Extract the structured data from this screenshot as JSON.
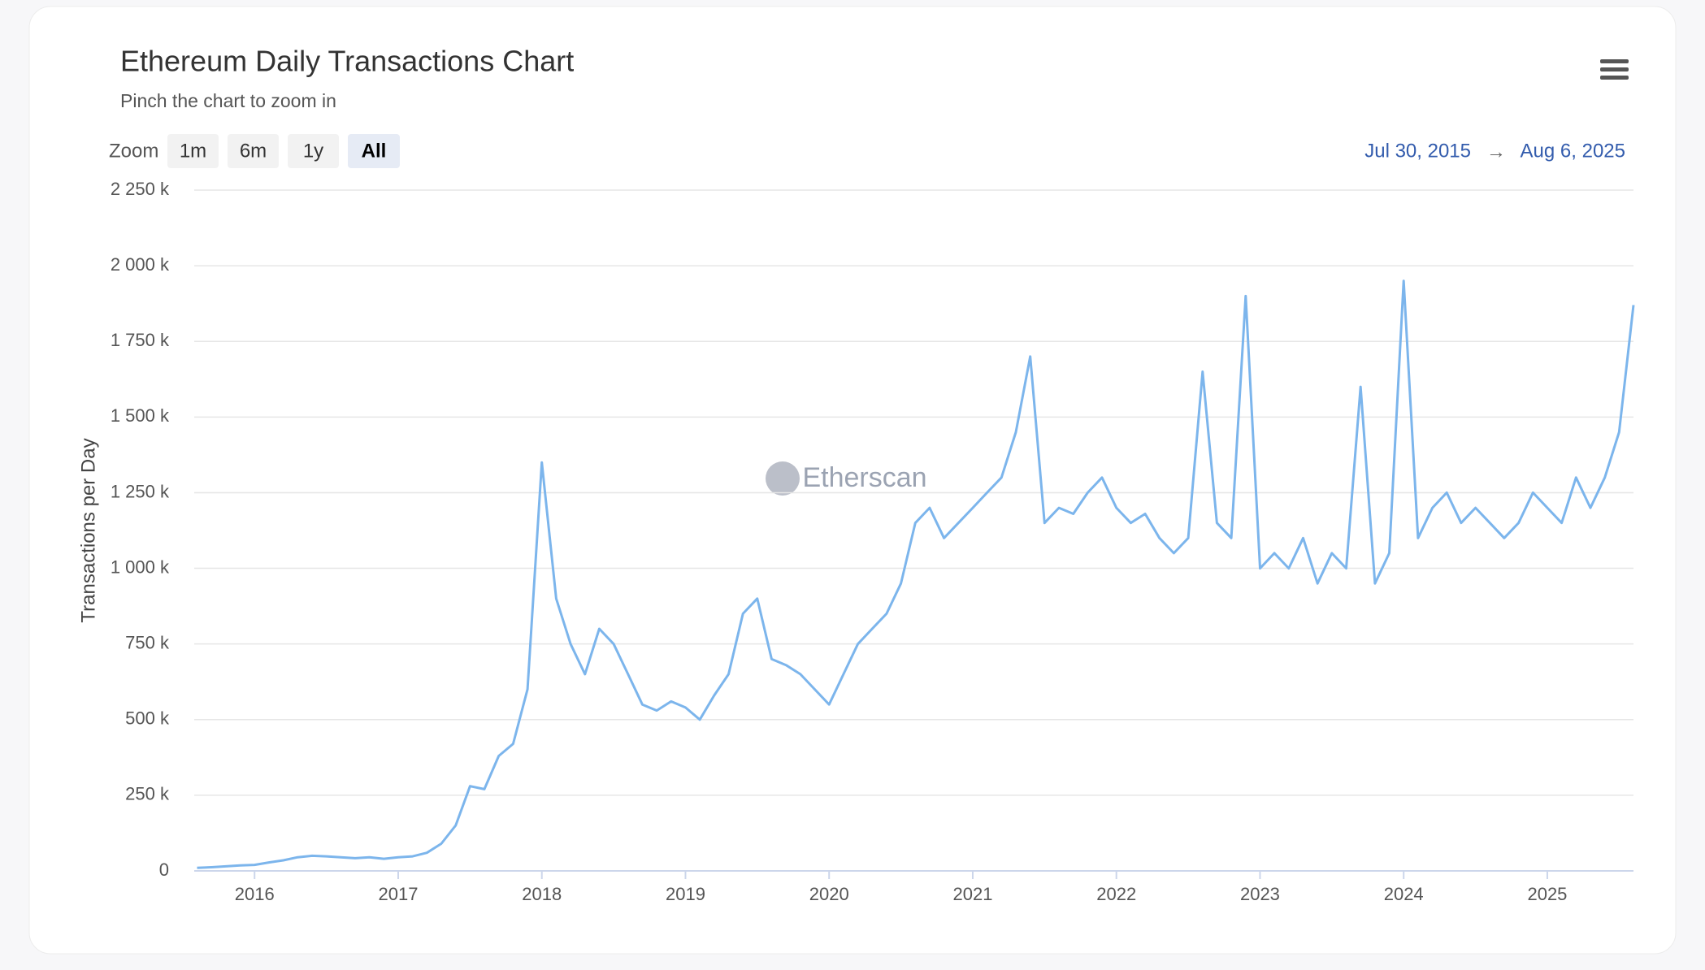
{
  "chart_data": {
    "type": "line",
    "title": "Ethereum Daily Transactions Chart",
    "subtitle": "Pinch the chart to zoom in",
    "zoom_label": "Zoom",
    "zoom_buttons": [
      "1m",
      "6m",
      "1y",
      "All"
    ],
    "zoom_active": 3,
    "range_start": "Jul 30, 2015",
    "range_arrow": "→",
    "range_end": "Aug 6, 2025",
    "watermark": "Etherscan",
    "y_label": "Transactions per Day",
    "color": "#7cb5ec",
    "grid": true,
    "xlim": [
      2015.58,
      2025.6
    ],
    "xticks": [
      2016,
      2017,
      2018,
      2019,
      2020,
      2021,
      2022,
      2023,
      2024,
      2025
    ],
    "ylim": [
      0,
      2250000
    ],
    "yticks": [
      {
        "value": 0,
        "label": "0"
      },
      {
        "value": 250000,
        "label": "250 k"
      },
      {
        "value": 500000,
        "label": "500 k"
      },
      {
        "value": 750000,
        "label": "750 k"
      },
      {
        "value": 1000000,
        "label": "1 000 k"
      },
      {
        "value": 1250000,
        "label": "1 250 k"
      },
      {
        "value": 1500000,
        "label": "1 500 k"
      },
      {
        "value": 1750000,
        "label": "1 750 k"
      },
      {
        "value": 2000000,
        "label": "2 000 k"
      },
      {
        "value": 2250000,
        "label": "2 250 k"
      }
    ],
    "x": [
      2015.6,
      2015.7,
      2015.8,
      2015.9,
      2016.0,
      2016.1,
      2016.2,
      2016.3,
      2016.4,
      2016.5,
      2016.6,
      2016.7,
      2016.8,
      2016.9,
      2017.0,
      2017.1,
      2017.2,
      2017.3,
      2017.4,
      2017.5,
      2017.6,
      2017.7,
      2017.8,
      2017.9,
      2018.0,
      2018.1,
      2018.2,
      2018.3,
      2018.4,
      2018.5,
      2018.6,
      2018.7,
      2018.8,
      2018.9,
      2019.0,
      2019.1,
      2019.2,
      2019.3,
      2019.4,
      2019.5,
      2019.6,
      2019.7,
      2019.8,
      2019.9,
      2020.0,
      2020.1,
      2020.2,
      2020.3,
      2020.4,
      2020.5,
      2020.6,
      2020.7,
      2020.8,
      2020.9,
      2021.0,
      2021.1,
      2021.2,
      2021.3,
      2021.4,
      2021.5,
      2021.6,
      2021.7,
      2021.8,
      2021.9,
      2022.0,
      2022.1,
      2022.2,
      2022.3,
      2022.4,
      2022.5,
      2022.6,
      2022.7,
      2022.8,
      2022.9,
      2023.0,
      2023.1,
      2023.2,
      2023.3,
      2023.4,
      2023.5,
      2023.6,
      2023.7,
      2023.8,
      2023.9,
      2024.0,
      2024.1,
      2024.2,
      2024.3,
      2024.4,
      2024.5,
      2024.6,
      2024.7,
      2024.8,
      2024.9,
      2025.0,
      2025.1,
      2025.2,
      2025.3,
      2025.4,
      2025.5,
      2025.6
    ],
    "values": [
      10000,
      12000,
      15000,
      18000,
      20000,
      28000,
      35000,
      45000,
      50000,
      48000,
      45000,
      42000,
      45000,
      40000,
      45000,
      48000,
      60000,
      90000,
      150000,
      280000,
      270000,
      380000,
      420000,
      600000,
      1350000,
      900000,
      750000,
      650000,
      800000,
      750000,
      650000,
      550000,
      530000,
      560000,
      540000,
      500000,
      580000,
      650000,
      850000,
      900000,
      700000,
      680000,
      650000,
      600000,
      550000,
      650000,
      750000,
      800000,
      850000,
      950000,
      1150000,
      1200000,
      1100000,
      1150000,
      1200000,
      1250000,
      1300000,
      1450000,
      1700000,
      1150000,
      1200000,
      1180000,
      1250000,
      1300000,
      1200000,
      1150000,
      1180000,
      1100000,
      1050000,
      1100000,
      1650000,
      1150000,
      1100000,
      1900000,
      1000000,
      1050000,
      1000000,
      1100000,
      950000,
      1050000,
      1000000,
      1600000,
      950000,
      1050000,
      1950000,
      1100000,
      1200000,
      1250000,
      1150000,
      1200000,
      1150000,
      1100000,
      1150000,
      1250000,
      1200000,
      1150000,
      1300000,
      1200000,
      1300000,
      1450000,
      1870000
    ]
  }
}
